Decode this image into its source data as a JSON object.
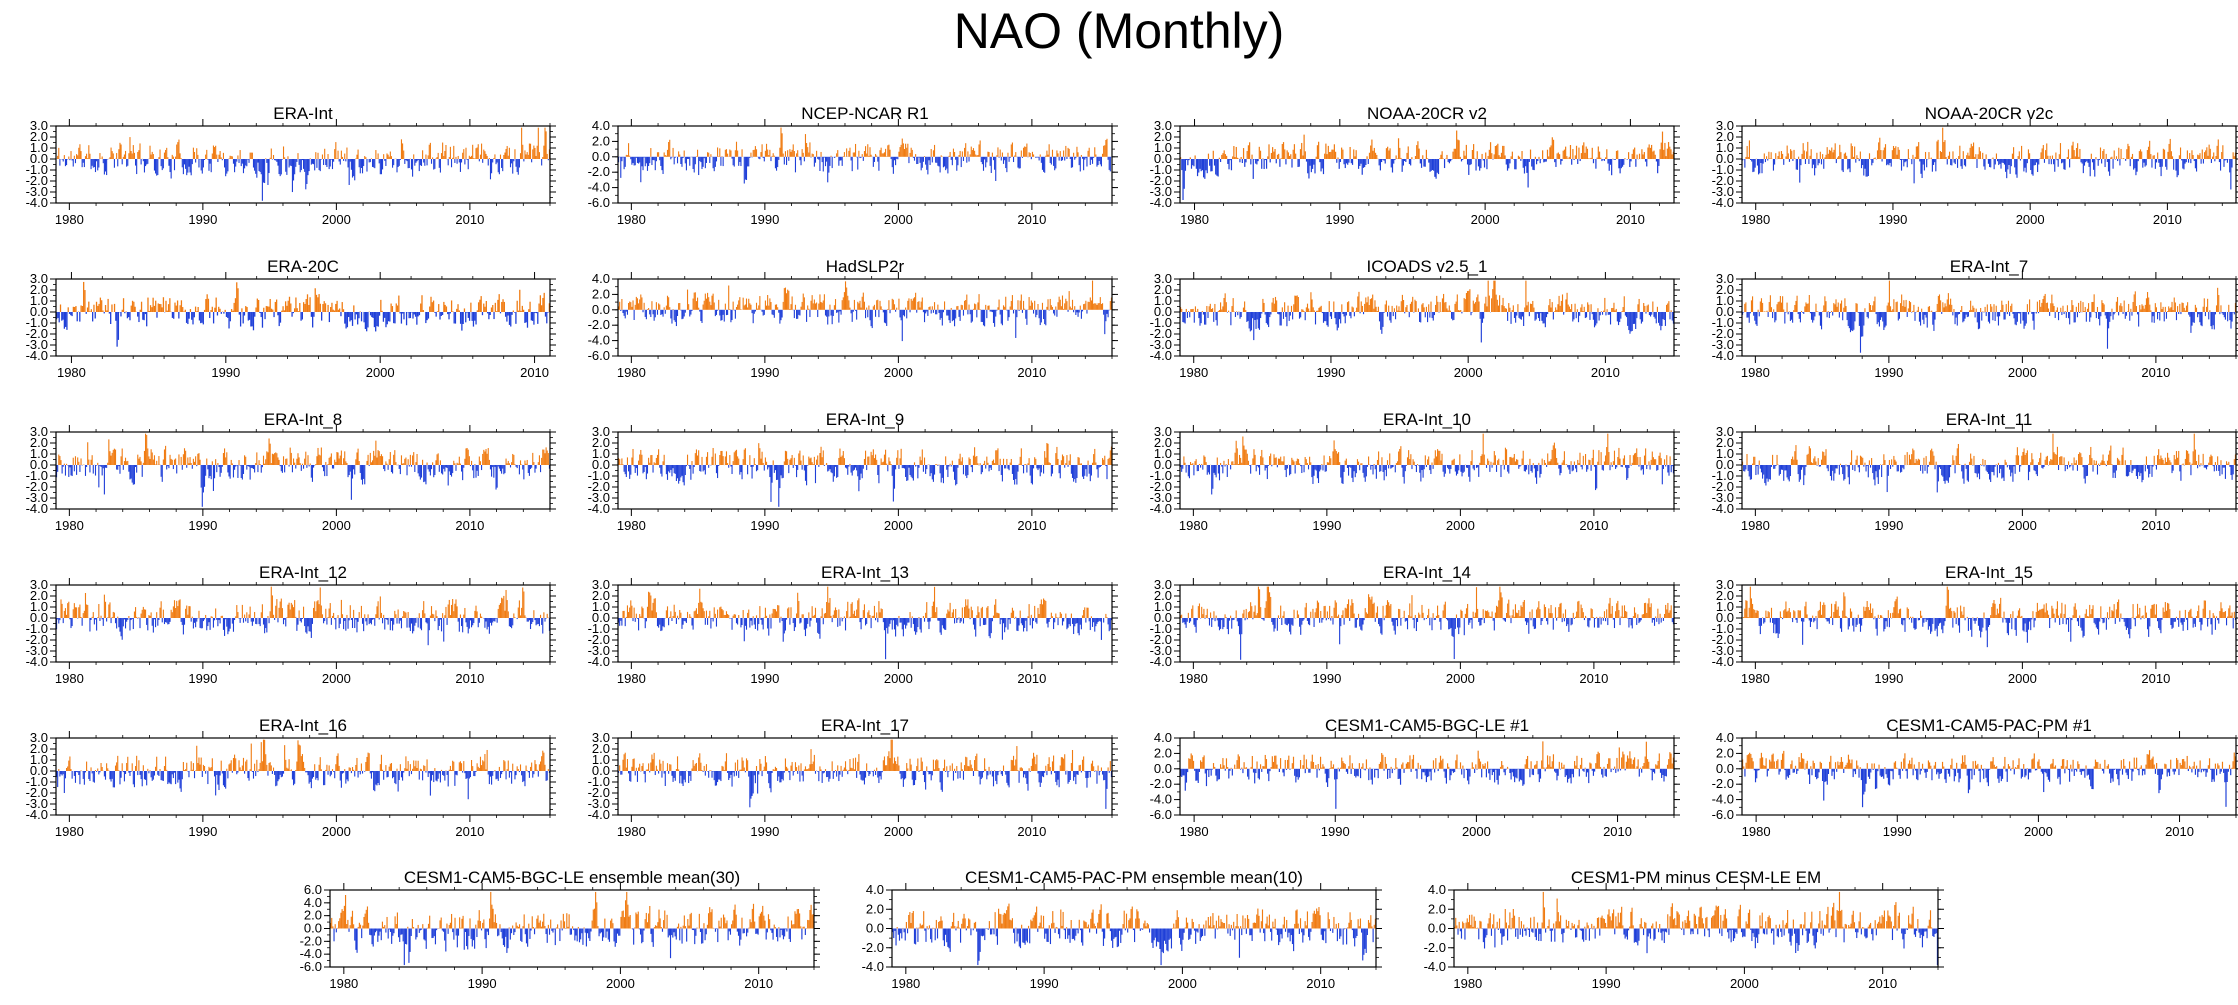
{
  "page_title": "NAO (Monthly)",
  "colors": {
    "positive": "#f07c13",
    "negative": "#1f3fd8",
    "axis": "#000000"
  },
  "chart_data": [
    {
      "type": "bar",
      "title": "ERA-Int",
      "ylim": [
        -4,
        3
      ],
      "yticks": [
        3.0,
        2.0,
        1.0,
        0.0,
        -1.0,
        -2.0,
        -3.0,
        -4.0
      ],
      "xlim": [
        1979,
        2016
      ],
      "xticks": [
        1980,
        1990,
        2000,
        2010
      ],
      "seed": 11
    },
    {
      "type": "bar",
      "title": "NCEP-NCAR R1",
      "ylim": [
        -6,
        4
      ],
      "yticks": [
        4.0,
        2.0,
        0.0,
        -2.0,
        -4.0,
        -6.0
      ],
      "xlim": [
        1979,
        2016
      ],
      "xticks": [
        1980,
        1990,
        2000,
        2010
      ],
      "seed": 12
    },
    {
      "type": "bar",
      "title": "NOAA-20CR v2",
      "ylim": [
        -4,
        3
      ],
      "yticks": [
        3.0,
        2.0,
        1.0,
        0.0,
        -1.0,
        -2.0,
        -3.0,
        -4.0
      ],
      "xlim": [
        1979,
        2013
      ],
      "xticks": [
        1980,
        1990,
        2000,
        2010
      ],
      "seed": 13
    },
    {
      "type": "bar",
      "title": "NOAA-20CR v2c",
      "ylim": [
        -4,
        3
      ],
      "yticks": [
        3.0,
        2.0,
        1.0,
        0.0,
        -1.0,
        -2.0,
        -3.0,
        -4.0
      ],
      "xlim": [
        1979,
        2015
      ],
      "xticks": [
        1980,
        1990,
        2000,
        2010
      ],
      "seed": 14
    },
    {
      "type": "bar",
      "title": "ERA-20C",
      "ylim": [
        -4,
        3
      ],
      "yticks": [
        3.0,
        2.0,
        1.0,
        0.0,
        -1.0,
        -2.0,
        -3.0,
        -4.0
      ],
      "xlim": [
        1979,
        2011
      ],
      "xticks": [
        1980,
        1990,
        2000,
        2010
      ],
      "seed": 15
    },
    {
      "type": "bar",
      "title": "HadSLP2r",
      "ylim": [
        -6,
        4
      ],
      "yticks": [
        4.0,
        2.0,
        0.0,
        -2.0,
        -4.0,
        -6.0
      ],
      "xlim": [
        1979,
        2016
      ],
      "xticks": [
        1980,
        1990,
        2000,
        2010
      ],
      "seed": 16
    },
    {
      "type": "bar",
      "title": "ICOADS v2.5_1",
      "ylim": [
        -4,
        3
      ],
      "yticks": [
        3.0,
        2.0,
        1.0,
        0.0,
        -1.0,
        -2.0,
        -3.0,
        -4.0
      ],
      "xlim": [
        1979,
        2015
      ],
      "xticks": [
        1980,
        1990,
        2000,
        2010
      ],
      "seed": 17
    },
    {
      "type": "bar",
      "title": "ERA-Int_7",
      "ylim": [
        -4,
        3
      ],
      "yticks": [
        3.0,
        2.0,
        1.0,
        0.0,
        -1.0,
        -2.0,
        -3.0,
        -4.0
      ],
      "xlim": [
        1979,
        2016
      ],
      "xticks": [
        1980,
        1990,
        2000,
        2010
      ],
      "seed": 18
    },
    {
      "type": "bar",
      "title": "ERA-Int_8",
      "ylim": [
        -4,
        3
      ],
      "yticks": [
        3.0,
        2.0,
        1.0,
        0.0,
        -1.0,
        -2.0,
        -3.0,
        -4.0
      ],
      "xlim": [
        1979,
        2016
      ],
      "xticks": [
        1980,
        1990,
        2000,
        2010
      ],
      "seed": 19
    },
    {
      "type": "bar",
      "title": "ERA-Int_9",
      "ylim": [
        -4,
        3
      ],
      "yticks": [
        3.0,
        2.0,
        1.0,
        0.0,
        -1.0,
        -2.0,
        -3.0,
        -4.0
      ],
      "xlim": [
        1979,
        2016
      ],
      "xticks": [
        1980,
        1990,
        2000,
        2010
      ],
      "seed": 20
    },
    {
      "type": "bar",
      "title": "ERA-Int_10",
      "ylim": [
        -4,
        3
      ],
      "yticks": [
        3.0,
        2.0,
        1.0,
        0.0,
        -1.0,
        -2.0,
        -3.0,
        -4.0
      ],
      "xlim": [
        1979,
        2016
      ],
      "xticks": [
        1980,
        1990,
        2000,
        2010
      ],
      "seed": 21
    },
    {
      "type": "bar",
      "title": "ERA-Int_11",
      "ylim": [
        -4,
        3
      ],
      "yticks": [
        3.0,
        2.0,
        1.0,
        0.0,
        -1.0,
        -2.0,
        -3.0,
        -4.0
      ],
      "xlim": [
        1979,
        2016
      ],
      "xticks": [
        1980,
        1990,
        2000,
        2010
      ],
      "seed": 22
    },
    {
      "type": "bar",
      "title": "ERA-Int_12",
      "ylim": [
        -4,
        3
      ],
      "yticks": [
        3.0,
        2.0,
        1.0,
        0.0,
        -1.0,
        -2.0,
        -3.0,
        -4.0
      ],
      "xlim": [
        1979,
        2016
      ],
      "xticks": [
        1980,
        1990,
        2000,
        2010
      ],
      "seed": 23
    },
    {
      "type": "bar",
      "title": "ERA-Int_13",
      "ylim": [
        -4,
        3
      ],
      "yticks": [
        3.0,
        2.0,
        1.0,
        0.0,
        -1.0,
        -2.0,
        -3.0,
        -4.0
      ],
      "xlim": [
        1979,
        2016
      ],
      "xticks": [
        1980,
        1990,
        2000,
        2010
      ],
      "seed": 24
    },
    {
      "type": "bar",
      "title": "ERA-Int_14",
      "ylim": [
        -4,
        3
      ],
      "yticks": [
        3.0,
        2.0,
        1.0,
        0.0,
        -1.0,
        -2.0,
        -3.0,
        -4.0
      ],
      "xlim": [
        1979,
        2016
      ],
      "xticks": [
        1980,
        1990,
        2000,
        2010
      ],
      "seed": 25
    },
    {
      "type": "bar",
      "title": "ERA-Int_15",
      "ylim": [
        -4,
        3
      ],
      "yticks": [
        3.0,
        2.0,
        1.0,
        0.0,
        -1.0,
        -2.0,
        -3.0,
        -4.0
      ],
      "xlim": [
        1979,
        2016
      ],
      "xticks": [
        1980,
        1990,
        2000,
        2010
      ],
      "seed": 26
    },
    {
      "type": "bar",
      "title": "ERA-Int_16",
      "ylim": [
        -4,
        3
      ],
      "yticks": [
        3.0,
        2.0,
        1.0,
        0.0,
        -1.0,
        -2.0,
        -3.0,
        -4.0
      ],
      "xlim": [
        1979,
        2016
      ],
      "xticks": [
        1980,
        1990,
        2000,
        2010
      ],
      "seed": 27
    },
    {
      "type": "bar",
      "title": "ERA-Int_17",
      "ylim": [
        -4,
        3
      ],
      "yticks": [
        3.0,
        2.0,
        1.0,
        0.0,
        -1.0,
        -2.0,
        -3.0,
        -4.0
      ],
      "xlim": [
        1979,
        2016
      ],
      "xticks": [
        1980,
        1990,
        2000,
        2010
      ],
      "seed": 28
    },
    {
      "type": "bar",
      "title": "CESM1-CAM5-BGC-LE #1",
      "ylim": [
        -6,
        4
      ],
      "yticks": [
        4.0,
        2.0,
        0.0,
        -2.0,
        -4.0,
        -6.0
      ],
      "xlim": [
        1979,
        2014
      ],
      "xticks": [
        1980,
        1990,
        2000,
        2010
      ],
      "seed": 29
    },
    {
      "type": "bar",
      "title": "CESM1-CAM5-PAC-PM #1",
      "ylim": [
        -6,
        4
      ],
      "yticks": [
        4.0,
        2.0,
        0.0,
        -2.0,
        -4.0,
        -6.0
      ],
      "xlim": [
        1979,
        2014
      ],
      "xticks": [
        1980,
        1990,
        2000,
        2010
      ],
      "seed": 30
    },
    {
      "type": "bar",
      "title": "CESM1-CAM5-BGC-LE ensemble mean(30)",
      "ylim": [
        -6,
        6
      ],
      "yticks": [
        6.0,
        4.0,
        2.0,
        0.0,
        -2.0,
        -4.0,
        -6.0
      ],
      "xlim": [
        1979,
        2014
      ],
      "xticks": [
        1980,
        1990,
        2000,
        2010
      ],
      "seed": 31
    },
    {
      "type": "bar",
      "title": "CESM1-CAM5-PAC-PM ensemble mean(10)",
      "ylim": [
        -4,
        4
      ],
      "yticks": [
        4.0,
        2.0,
        0.0,
        -2.0,
        -4.0
      ],
      "xlim": [
        1979,
        2014
      ],
      "xticks": [
        1980,
        1990,
        2000,
        2010
      ],
      "seed": 32
    },
    {
      "type": "bar",
      "title": "CESM1-PM minus CESM-LE EM",
      "ylim": [
        -4,
        4
      ],
      "yticks": [
        4.0,
        2.0,
        0.0,
        -2.0,
        -4.0
      ],
      "xlim": [
        1979,
        2014
      ],
      "xticks": [
        1980,
        1990,
        2000,
        2010
      ],
      "seed": 33
    }
  ]
}
